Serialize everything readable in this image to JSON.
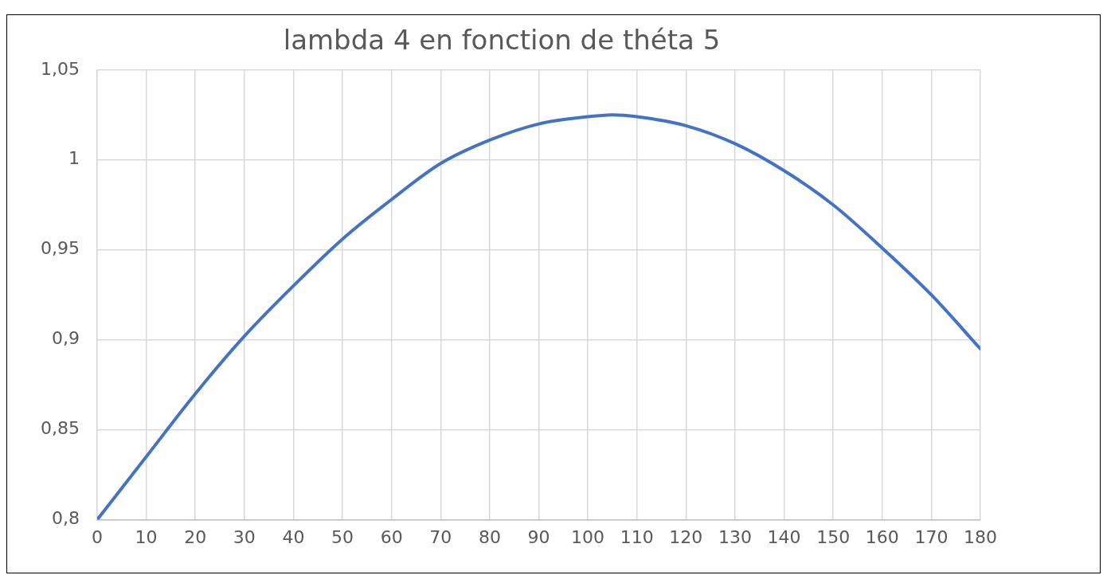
{
  "chart_data": {
    "type": "line",
    "title": "lambda 4 en fonction de théta 5",
    "x": [
      0,
      10,
      20,
      30,
      40,
      50,
      60,
      70,
      80,
      90,
      100,
      105,
      110,
      120,
      130,
      140,
      150,
      160,
      170,
      180
    ],
    "series": [
      {
        "color": "#4472c4",
        "values": [
          0.8,
          0.835,
          0.87,
          0.902,
          0.93,
          0.956,
          0.978,
          0.998,
          1.011,
          1.02,
          1.024,
          1.025,
          1.024,
          1.019,
          1.009,
          0.994,
          0.975,
          0.951,
          0.925,
          0.895
        ]
      }
    ],
    "xlim": [
      0,
      180
    ],
    "xticks": [
      0,
      10,
      20,
      30,
      40,
      50,
      60,
      70,
      80,
      90,
      100,
      110,
      120,
      130,
      140,
      150,
      160,
      170,
      180
    ],
    "ylim": [
      0.8,
      1.05
    ],
    "yticks": [
      {
        "value": 0.8,
        "label": "0,8"
      },
      {
        "value": 0.85,
        "label": "0,85"
      },
      {
        "value": 0.9,
        "label": "0,9"
      },
      {
        "value": 0.95,
        "label": "0,95"
      },
      {
        "value": 1,
        "label": "1"
      },
      {
        "value": 1.05,
        "label": "1,05"
      }
    ],
    "grid": true,
    "legend": false,
    "marker": "none",
    "line_style": "solid"
  }
}
